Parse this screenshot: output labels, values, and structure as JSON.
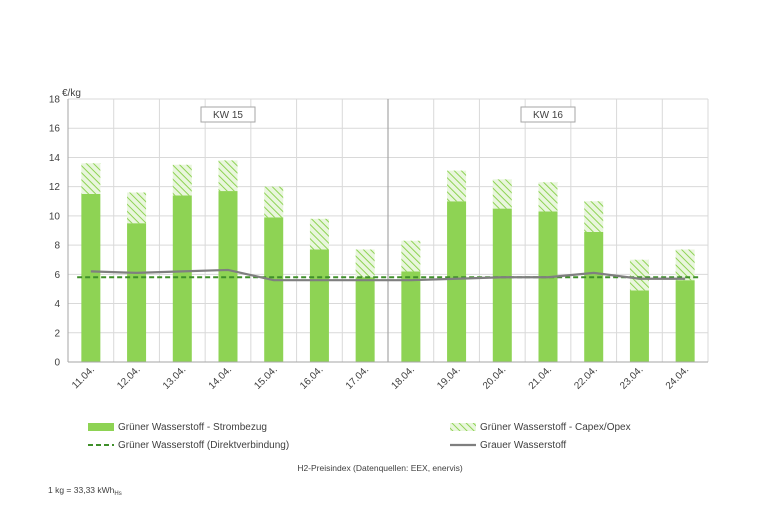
{
  "chart_data": {
    "type": "bar",
    "unit_label": "€/kg",
    "ylim": [
      0,
      18
    ],
    "y_ticks": [
      "0",
      "2",
      "4",
      "6",
      "8",
      "10",
      "12",
      "14",
      "16",
      "18"
    ],
    "categories": [
      "11.04.",
      "12.04.",
      "13.04.",
      "14.04.",
      "15.04.",
      "16.04.",
      "17.04.",
      "18.04.",
      "19.04.",
      "20.04.",
      "21.04.",
      "22.04.",
      "23.04.",
      "24.04."
    ],
    "weeks": [
      {
        "label": "KW 15",
        "start": 0,
        "end": 6
      },
      {
        "label": "KW 16",
        "start": 7,
        "end": 13
      }
    ],
    "grid": true,
    "series": [
      {
        "name": "Grüner Wasserstoff - Strombezug",
        "kind": "bar-stack",
        "values": [
          11.5,
          9.5,
          11.4,
          11.7,
          9.9,
          7.7,
          5.8,
          6.2,
          11.0,
          10.5,
          10.3,
          8.9,
          4.9,
          5.6
        ]
      },
      {
        "name": "Grüner Wasserstoff - Capex/Opex",
        "kind": "bar-stack-hatched",
        "values": [
          2.1,
          2.1,
          2.1,
          2.1,
          2.1,
          2.1,
          1.9,
          2.1,
          2.1,
          2.0,
          2.0,
          2.1,
          2.1,
          2.1
        ]
      },
      {
        "name": "Grüner Wasserstoff (Direktverbindung)",
        "kind": "dashed-line",
        "values": [
          5.8,
          5.8,
          5.8,
          5.8,
          5.8,
          5.8,
          5.8,
          5.8,
          5.8,
          5.8,
          5.8,
          5.8,
          5.8,
          5.8
        ]
      },
      {
        "name": "Grauer Wasserstoff",
        "kind": "line",
        "values": [
          6.2,
          6.1,
          6.2,
          6.3,
          5.6,
          5.6,
          5.6,
          5.6,
          5.7,
          5.8,
          5.8,
          6.1,
          5.7,
          5.7
        ]
      }
    ],
    "caption": "H2-Preisindex (Datenquellen: EEX, enervis)",
    "note_main": "1 kg = 33,33 kWh",
    "note_sub": "Hs"
  },
  "colors": {
    "green": "#8ed354",
    "green_hatch": "#b8e58f",
    "green_dash": "#3f8f2a",
    "grey_line": "#7f7f7f",
    "grid": "#d9d9d9",
    "axis": "#a6a6a6"
  }
}
